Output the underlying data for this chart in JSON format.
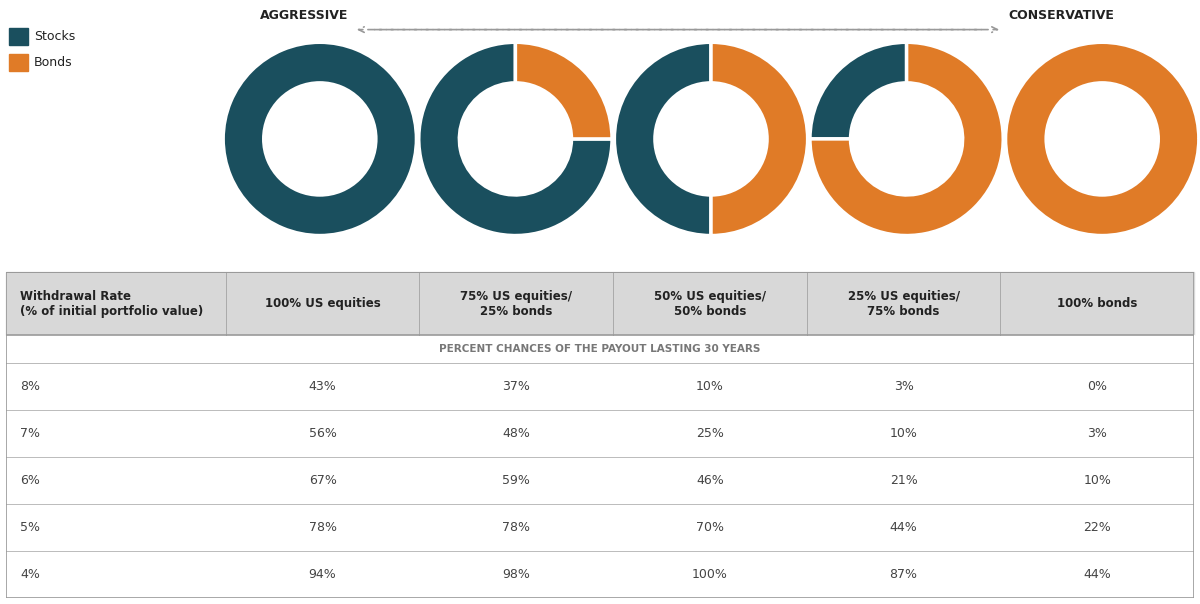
{
  "legend_items": [
    "Stocks",
    "Bonds"
  ],
  "stock_color": "#1a4f5e",
  "bond_color": "#e07b27",
  "bg_color": "#ffffff",
  "table_header_bg": "#d8d8d8",
  "text_color_dark": "#222222",
  "text_color_mid": "#555555",
  "text_color_data": "#444444",
  "aggressive_label": "AGGRESSIVE",
  "conservative_label": "CONSERVATIVE",
  "donut_data": [
    [
      100,
      0
    ],
    [
      75,
      25
    ],
    [
      50,
      50
    ],
    [
      25,
      75
    ],
    [
      0,
      100
    ]
  ],
  "col_headers": [
    "100% US equities",
    "75% US equities/\n25% bonds",
    "50% US equities/\n50% bonds",
    "25% US equities/\n75% bonds",
    "100% bonds"
  ],
  "row_labels": [
    "8%",
    "7%",
    "6%",
    "5%",
    "4%"
  ],
  "row_header": "Withdrawal Rate\n(% of initial portfolio value)",
  "subtitle": "PERCENT CHANCES OF THE PAYOUT LASTING 30 YEARS",
  "table_data": [
    [
      "43%",
      "37%",
      "10%",
      "3%",
      "0%"
    ],
    [
      "56%",
      "48%",
      "25%",
      "10%",
      "3%"
    ],
    [
      "67%",
      "59%",
      "46%",
      "21%",
      "10%"
    ],
    [
      "78%",
      "78%",
      "70%",
      "44%",
      "22%"
    ],
    [
      "94%",
      "98%",
      "100%",
      "87%",
      "44%"
    ]
  ],
  "arrow_color": "#999999",
  "line_color": "#bbbbbb",
  "border_color": "#999999"
}
